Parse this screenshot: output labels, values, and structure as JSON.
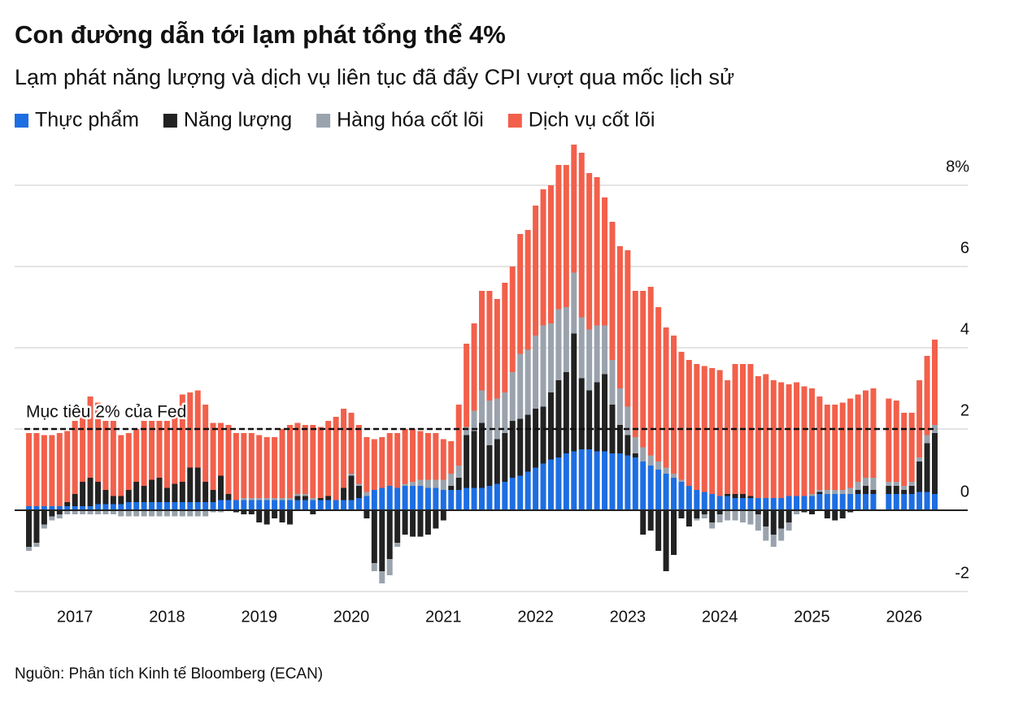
{
  "chart_data": {
    "type": "stacked_bar",
    "title": "Con đường dẫn tới lạm phát tổng thể 4%",
    "subtitle": "Lạm phát năng lượng và dịch vụ liên tục đã đẩy CPI vượt qua mốc lịch sử",
    "source": "Nguồn: Phân tích Kinh tế Bloomberg (ECAN)",
    "annotation": {
      "text": "Mục tiêu 2% của Fed",
      "value": 2
    },
    "legend": "top-left",
    "grid": true,
    "ylim": [
      -2,
      9
    ],
    "yticks": [
      -2,
      0,
      2,
      4,
      6,
      {
        "value": 8,
        "label": "8%"
      }
    ],
    "categories": [
      null,
      null,
      null,
      null,
      null,
      null,
      "2017",
      null,
      null,
      null,
      null,
      null,
      null,
      null,
      null,
      null,
      null,
      null,
      "2018",
      null,
      null,
      null,
      null,
      null,
      null,
      null,
      null,
      null,
      null,
      null,
      "2019",
      null,
      null,
      null,
      null,
      null,
      null,
      null,
      null,
      null,
      null,
      null,
      "2020",
      null,
      null,
      null,
      null,
      null,
      null,
      null,
      null,
      null,
      null,
      null,
      "2021",
      null,
      null,
      null,
      null,
      null,
      null,
      null,
      null,
      null,
      null,
      null,
      "2022",
      null,
      null,
      null,
      null,
      null,
      null,
      null,
      null,
      null,
      null,
      null,
      "2023",
      null,
      null,
      null,
      null,
      null,
      null,
      null,
      null,
      null,
      null,
      null,
      "2024",
      null,
      null,
      null,
      null,
      null,
      null,
      null,
      null,
      null,
      null,
      null,
      "2025",
      null,
      null,
      null,
      null,
      null,
      null,
      null,
      null,
      null,
      null,
      null,
      "2026",
      null,
      null,
      null,
      null
    ],
    "series": [
      {
        "name": "Thực phẩm",
        "color": "#1d6ee3",
        "values": [
          0.1,
          0.1,
          0.1,
          0.1,
          0.1,
          0.1,
          0.1,
          0.1,
          0.1,
          0.15,
          0.15,
          0.15,
          0.15,
          0.2,
          0.2,
          0.2,
          0.2,
          0.2,
          0.2,
          0.2,
          0.2,
          0.2,
          0.2,
          0.2,
          0.2,
          0.25,
          0.25,
          0.25,
          0.25,
          0.25,
          0.25,
          0.25,
          0.25,
          0.25,
          0.25,
          0.25,
          0.25,
          0.25,
          0.25,
          0.25,
          0.25,
          0.25,
          0.25,
          0.3,
          0.35,
          0.5,
          0.55,
          0.6,
          0.55,
          0.6,
          0.6,
          0.6,
          0.55,
          0.55,
          0.5,
          0.5,
          0.5,
          0.55,
          0.55,
          0.55,
          0.6,
          0.65,
          0.7,
          0.8,
          0.85,
          0.95,
          1.05,
          1.15,
          1.25,
          1.3,
          1.4,
          1.45,
          1.5,
          1.5,
          1.45,
          1.45,
          1.4,
          1.4,
          1.35,
          1.3,
          1.2,
          1.1,
          1.0,
          0.9,
          0.8,
          0.7,
          0.6,
          0.5,
          0.45,
          0.4,
          0.35,
          0.35,
          0.3,
          0.3,
          0.3,
          0.3,
          0.3,
          0.3,
          0.3,
          0.35,
          0.35,
          0.35,
          0.35,
          0.4,
          0.4,
          0.4,
          0.4,
          0.4,
          0.4,
          0.4,
          0.4,
          null,
          0.4,
          0.4,
          0.4,
          0.4,
          0.45,
          0.45,
          0.4
        ]
      },
      {
        "name": "Năng lượng",
        "color": "#222222",
        "values": [
          -0.9,
          -0.8,
          -0.35,
          -0.15,
          -0.1,
          0.1,
          0.3,
          0.6,
          0.7,
          0.55,
          0.35,
          0.2,
          0.2,
          0.3,
          0.5,
          0.4,
          0.55,
          0.6,
          0.35,
          0.45,
          0.5,
          0.85,
          0.85,
          0.5,
          0.3,
          0.6,
          0.15,
          -0.05,
          -0.1,
          -0.1,
          -0.3,
          -0.35,
          -0.2,
          -0.3,
          -0.35,
          0.1,
          0.1,
          -0.1,
          0.05,
          0.1,
          0,
          0.3,
          0.6,
          0.3,
          -0.2,
          -1.3,
          -1.5,
          -1.2,
          -0.8,
          -0.6,
          -0.65,
          -0.65,
          -0.6,
          -0.45,
          -0.25,
          0.1,
          0.3,
          1.3,
          1.4,
          1.6,
          1.0,
          1.1,
          1.2,
          1.4,
          1.4,
          1.4,
          1.45,
          1.4,
          1.65,
          1.9,
          2.0,
          2.9,
          1.75,
          1.45,
          1.7,
          1.9,
          1.2,
          0.7,
          0.5,
          0.1,
          -0.6,
          -0.5,
          -1.0,
          -1.5,
          -1.1,
          -0.2,
          -0.4,
          -0.2,
          -0.1,
          -0.3,
          -0.1,
          0.05,
          0.1,
          0.1,
          0.05,
          -0.1,
          -0.4,
          -0.6,
          -0.45,
          -0.3,
          0,
          -0.05,
          -0.1,
          0.05,
          -0.2,
          -0.25,
          -0.2,
          -0.05,
          0.1,
          0.2,
          0.1,
          null,
          0.2,
          0.2,
          0.1,
          0.2,
          0.75,
          1.2,
          1.5
        ]
      },
      {
        "name": "Hàng hóa cốt lõi",
        "color": "#9aa3ad",
        "values": [
          -0.1,
          -0.1,
          -0.1,
          -0.1,
          -0.1,
          -0.1,
          -0.1,
          -0.1,
          -0.1,
          -0.1,
          -0.1,
          -0.1,
          -0.15,
          -0.15,
          -0.15,
          -0.15,
          -0.15,
          -0.15,
          -0.15,
          -0.15,
          -0.15,
          -0.15,
          -0.15,
          -0.15,
          -0.05,
          -0.05,
          0,
          0,
          0.05,
          0.05,
          0.05,
          0.05,
          0.05,
          0.05,
          0.05,
          0.05,
          0.05,
          0.05,
          0,
          0,
          0,
          0,
          0.05,
          0.05,
          0.1,
          -0.2,
          -0.3,
          -0.4,
          -0.1,
          0.05,
          0.1,
          0.15,
          0.2,
          0.2,
          0.25,
          0.3,
          0.3,
          0.2,
          0.5,
          0.8,
          1.1,
          1.0,
          1.0,
          1.2,
          1.6,
          1.6,
          1.8,
          2.0,
          1.7,
          1.75,
          1.6,
          1.5,
          1.5,
          1.5,
          1.4,
          1.2,
          1.1,
          0.9,
          0.7,
          0.4,
          0.35,
          0.25,
          0.2,
          0.15,
          0.1,
          0.05,
          0,
          -0.05,
          -0.1,
          -0.15,
          -0.2,
          -0.25,
          -0.25,
          -0.3,
          -0.35,
          -0.4,
          -0.35,
          -0.3,
          -0.3,
          -0.2,
          -0.1,
          0,
          0.05,
          0.05,
          0.1,
          0.1,
          0.1,
          0.15,
          0.2,
          0.2,
          0.3,
          null,
          0.1,
          0.1,
          0.1,
          0.1,
          0.1,
          0.2,
          0.2
        ]
      },
      {
        "name": "Dịch vụ cốt lõi",
        "color": "#f2604b",
        "values": [
          1.8,
          1.8,
          1.75,
          1.75,
          1.8,
          1.75,
          1.8,
          1.7,
          2.0,
          1.95,
          1.7,
          1.85,
          1.5,
          1.4,
          1.3,
          1.6,
          1.45,
          1.4,
          1.65,
          1.75,
          2.15,
          1.85,
          1.9,
          1.9,
          1.65,
          1.3,
          1.7,
          1.65,
          1.6,
          1.6,
          1.55,
          1.5,
          1.5,
          1.7,
          1.8,
          1.75,
          1.7,
          1.8,
          1.75,
          1.85,
          2.05,
          1.95,
          1.5,
          1.45,
          1.35,
          1.25,
          1.25,
          1.3,
          1.35,
          1.35,
          1.3,
          1.2,
          1.15,
          1.15,
          1.0,
          0.8,
          1.5,
          2.05,
          2.15,
          2.45,
          2.7,
          2.45,
          2.7,
          2.6,
          2.95,
          2.95,
          3.2,
          3.35,
          3.4,
          3.55,
          3.5,
          3.15,
          4.05,
          3.85,
          3.65,
          3.15,
          3.4,
          3.5,
          3.85,
          3.6,
          3.85,
          4.15,
          3.8,
          3.45,
          3.4,
          3.15,
          3.1,
          3.1,
          3.1,
          3.1,
          3.1,
          2.8,
          3.2,
          3.2,
          3.25,
          3.0,
          3.05,
          2.9,
          2.85,
          2.75,
          2.8,
          2.7,
          2.6,
          2.3,
          2.1,
          2.1,
          2.15,
          2.2,
          2.15,
          2.15,
          2.2,
          null,
          2.05,
          2.0,
          1.8,
          1.7,
          1.9,
          1.95,
          2.1
        ]
      }
    ]
  }
}
